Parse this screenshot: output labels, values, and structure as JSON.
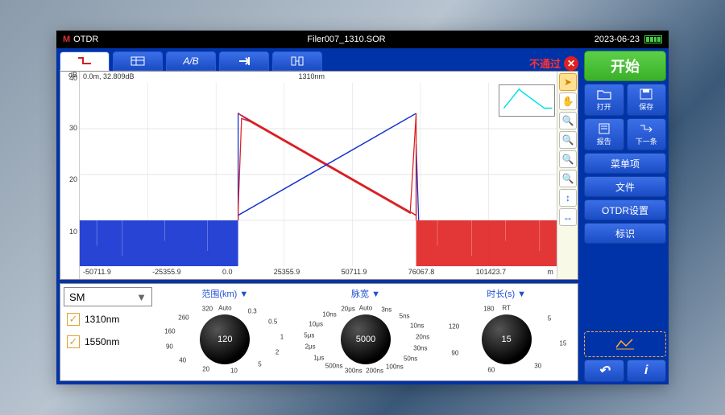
{
  "topbar": {
    "brand": "OTDR",
    "filename": "Filer007_1310.SOR",
    "date": "2023-06-23"
  },
  "tabs": {
    "status_text": "不通过"
  },
  "chart": {
    "type": "line",
    "y_label": "dB",
    "y_top": "40",
    "cursor_info": "0.0m, 32.809dB",
    "wavelength": "1310nm",
    "y_ticks": [
      "40",
      "30",
      "20",
      "10"
    ],
    "x_ticks": [
      "-50711.9",
      "-25355.9",
      "0.0",
      "25355.9",
      "50711.9",
      "76067.8",
      "101423.7",
      "m"
    ],
    "xlim": [
      -50712,
      101424
    ],
    "ylim": [
      0,
      40
    ],
    "background_color": "#ffffff",
    "series": [
      {
        "name": "red",
        "color": "#e02020"
      },
      {
        "name": "blue",
        "color": "#1030d0"
      }
    ],
    "thumb_color": "#00e0e0"
  },
  "mode": {
    "selected": "SM",
    "wavelengths": [
      "1310nm",
      "1550nm"
    ]
  },
  "dials": [
    {
      "label": "范围(km)",
      "value": "120",
      "ticks": [
        "Auto",
        "0.3",
        "0.5",
        "1",
        "2",
        "5",
        "10",
        "20",
        "40",
        "90",
        "160",
        "260",
        "320"
      ]
    },
    {
      "label": "脉宽",
      "value": "5000",
      "ticks": [
        "Auto",
        "3ns",
        "5ns",
        "10ns",
        "20ns",
        "30ns",
        "50ns",
        "100ns",
        "200ns",
        "300ns",
        "500ns",
        "1μs",
        "2μs",
        "5μs",
        "10μs",
        "10ns",
        "20μs"
      ]
    },
    {
      "label": "时长(s)",
      "value": "15",
      "ticks": [
        "RT",
        "5",
        "15",
        "30",
        "60",
        "90",
        "120",
        "180"
      ]
    }
  ],
  "right": {
    "start": "开始",
    "icon_buttons": [
      {
        "label": "打开"
      },
      {
        "label": "保存"
      },
      {
        "label": "报告"
      },
      {
        "label": "下一条"
      }
    ],
    "menu_buttons": [
      "菜单项",
      "文件",
      "OTDR设置",
      "标识"
    ]
  }
}
